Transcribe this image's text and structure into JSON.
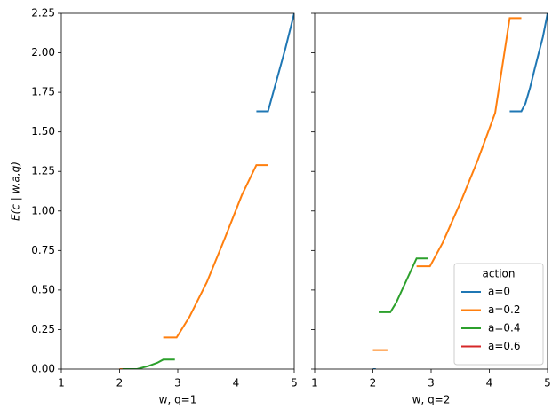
{
  "chart_data": [
    {
      "type": "line",
      "xlabel": "w, q=1",
      "ylabel": "E(c | w,a,q)",
      "xlim": [
        1,
        5
      ],
      "ylim": [
        0,
        2.25
      ],
      "xticks": [
        1,
        2,
        3,
        4,
        5
      ],
      "yticks": [
        {
          "value": 0,
          "label": "0.00"
        },
        {
          "value": 0.25,
          "label": "0.25"
        },
        {
          "value": 0.5,
          "label": "0.50"
        },
        {
          "value": 0.75,
          "label": "0.75"
        },
        {
          "value": 1,
          "label": "1.00"
        },
        {
          "value": 1.25,
          "label": "1.25"
        },
        {
          "value": 1.5,
          "label": "1.50"
        },
        {
          "value": 1.75,
          "label": "1.75"
        },
        {
          "value": 2,
          "label": "2.00"
        },
        {
          "value": 2.25,
          "label": "2.25"
        }
      ],
      "series": [
        {
          "color": "#1f77b4",
          "x": [
            4.35,
            4.55,
            4.7,
            4.85,
            5
          ],
          "values": [
            1.63,
            1.63,
            1.83,
            2.03,
            2.25
          ]
        },
        {
          "color": "#ff7f0e",
          "x": [
            2.0,
            2.1,
            null,
            2.75,
            2.98,
            3.2,
            3.5,
            3.8,
            4.1,
            4.35,
            4.55
          ],
          "values": [
            0,
            0,
            null,
            0.2,
            0.2,
            0.33,
            0.55,
            0.82,
            1.1,
            1.29,
            1.29
          ]
        },
        {
          "color": "#2ca02c",
          "x": [
            2.05,
            2.3,
            2.5,
            2.65,
            2.75,
            2.95
          ],
          "values": [
            0,
            0,
            0.02,
            0.04,
            0.06,
            0.06
          ]
        },
        {
          "color": "#d62728",
          "x": [],
          "values": []
        }
      ]
    },
    {
      "type": "line",
      "xlabel": "w, q=2",
      "xlim": [
        1,
        5
      ],
      "ylim": [
        0,
        2.25
      ],
      "xticks": [
        1,
        2,
        3,
        4,
        5
      ],
      "yticks": [
        0,
        0.25,
        0.5,
        0.75,
        1,
        1.25,
        1.5,
        1.75,
        2,
        2.25
      ],
      "legend": {
        "title": "action",
        "loc": "lower right"
      },
      "series": [
        {
          "name": "a=0",
          "color": "#1f77b4",
          "x": [
            2.0,
            2.05,
            null,
            4.35,
            4.55,
            4.62,
            4.7,
            4.78,
            4.85,
            4.92,
            5
          ],
          "values": [
            0,
            0,
            null,
            1.63,
            1.63,
            1.68,
            1.78,
            1.9,
            2.0,
            2.1,
            2.25
          ]
        },
        {
          "name": "a=0.2",
          "color": "#ff7f0e",
          "x": [
            2.0,
            2.25,
            null,
            2.75,
            2.98,
            3.2,
            3.5,
            3.8,
            4.1,
            4.35,
            4.55
          ],
          "values": [
            0.12,
            0.12,
            null,
            0.65,
            0.65,
            0.8,
            1.05,
            1.32,
            1.62,
            2.22,
            2.22
          ]
        },
        {
          "name": "a=0.4",
          "color": "#2ca02c",
          "x": [
            2.1,
            2.3,
            2.4,
            2.6,
            2.75,
            2.95
          ],
          "values": [
            0.36,
            0.36,
            0.42,
            0.58,
            0.7,
            0.7
          ]
        },
        {
          "name": "a=0.6",
          "color": "#d62728",
          "x": [],
          "values": []
        }
      ]
    }
  ]
}
